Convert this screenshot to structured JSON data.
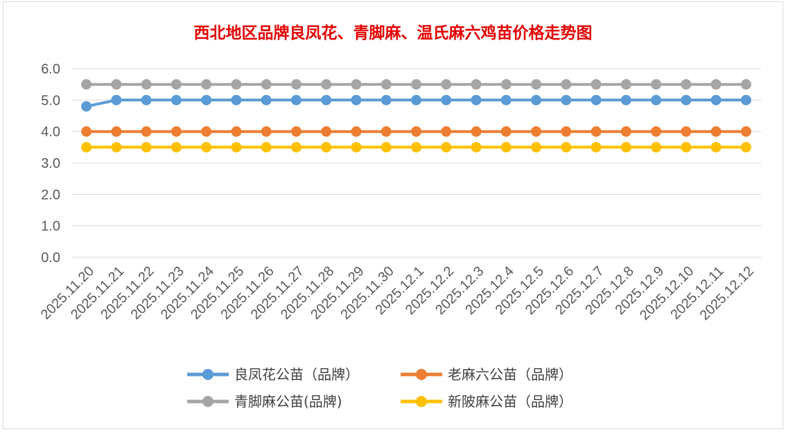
{
  "chart_data": {
    "type": "line",
    "title": "西北地区品牌良凤花、青脚麻、温氏麻六鸡苗价格走势图",
    "xlabel": "",
    "ylabel": "",
    "ylim": [
      0,
      6
    ],
    "yticks": [
      "0.0",
      "1.0",
      "2.0",
      "3.0",
      "4.0",
      "5.0",
      "6.0"
    ],
    "grid": true,
    "legend_position": "bottom",
    "categories": [
      "2025.11.20",
      "2025.11.21",
      "2025.11.22",
      "2025.11.23",
      "2025.11.24",
      "2025.11.25",
      "2025.11.26",
      "2025.11.27",
      "2025.11.28",
      "2025.11.29",
      "2025.11.30",
      "2025.12.1",
      "2025.12.2",
      "2025.12.3",
      "2025.12.4",
      "2025.12.5",
      "2025.12.6",
      "2025.12.7",
      "2025.12.8",
      "2025.12.9",
      "2025.12.10",
      "2025.12.11",
      "2025.12.12"
    ],
    "series": [
      {
        "name": "良凤花公苗（品牌）",
        "color": "#5b9bd5",
        "values": [
          4.8,
          5.0,
          5.0,
          5.0,
          5.0,
          5.0,
          5.0,
          5.0,
          5.0,
          5.0,
          5.0,
          5.0,
          5.0,
          5.0,
          5.0,
          5.0,
          5.0,
          5.0,
          5.0,
          5.0,
          5.0,
          5.0,
          5.0
        ]
      },
      {
        "name": "老麻六公苗（品牌）",
        "color": "#ed7d31",
        "values": [
          4.0,
          4.0,
          4.0,
          4.0,
          4.0,
          4.0,
          4.0,
          4.0,
          4.0,
          4.0,
          4.0,
          4.0,
          4.0,
          4.0,
          4.0,
          4.0,
          4.0,
          4.0,
          4.0,
          4.0,
          4.0,
          4.0,
          4.0
        ]
      },
      {
        "name": "青脚麻公苗(品牌)",
        "color": "#a5a5a5",
        "values": [
          5.5,
          5.5,
          5.5,
          5.5,
          5.5,
          5.5,
          5.5,
          5.5,
          5.5,
          5.5,
          5.5,
          5.5,
          5.5,
          5.5,
          5.5,
          5.5,
          5.5,
          5.5,
          5.5,
          5.5,
          5.5,
          5.5,
          5.5
        ]
      },
      {
        "name": "新陂麻公苗（品牌）",
        "color": "#ffc000",
        "values": [
          3.5,
          3.5,
          3.5,
          3.5,
          3.5,
          3.5,
          3.5,
          3.5,
          3.5,
          3.5,
          3.5,
          3.5,
          3.5,
          3.5,
          3.5,
          3.5,
          3.5,
          3.5,
          3.5,
          3.5,
          3.5,
          3.5,
          3.5
        ]
      }
    ]
  }
}
